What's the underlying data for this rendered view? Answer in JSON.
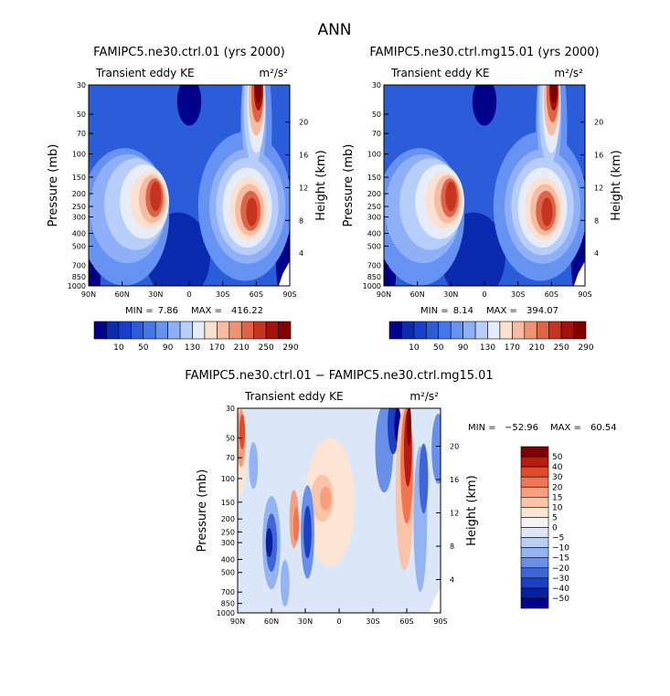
{
  "figure": {
    "title": "ANN"
  },
  "chart_data": [
    {
      "type": "heatmap",
      "id": "p1",
      "title": "FAMIPC5.ne30.ctrl.01 (yrs 2000)",
      "subtitle_left": "Transient eddy KE",
      "units_text": "m²/s²",
      "xlabel": "",
      "ylabel": "Pressure (mb)",
      "ylabel_right": "Height (km)",
      "x_ticks": [
        "90N",
        "60N",
        "30N",
        "0",
        "30S",
        "60S",
        "90S"
      ],
      "y_ticks": [
        "30",
        "50",
        "70",
        "100",
        "150",
        "200",
        "250",
        "300",
        "400",
        "500",
        "700",
        "850",
        "1000"
      ],
      "y_ticks_right": [
        "20",
        "16",
        "12",
        "8",
        "4"
      ],
      "xlim": [
        90,
        -90
      ],
      "ylim": [
        1000,
        30
      ],
      "stats": {
        "min_label": "MIN =",
        "min": "7.86",
        "max_label": "MAX =",
        "max": "416.22"
      },
      "colorbar_labels": [
        "10",
        "50",
        "90",
        "130",
        "170",
        "210",
        "250",
        "290"
      ],
      "features": [
        {
          "name": "northern jet eddy maximum",
          "lat": 30,
          "p": 220,
          "value": 380
        },
        {
          "name": "southern jet eddy maximum",
          "lat": -55,
          "p": 270,
          "value": 416
        },
        {
          "name": "southern stratospheric maximum",
          "lat": -60,
          "p": 35,
          "value": 300
        }
      ]
    },
    {
      "type": "heatmap",
      "id": "p2",
      "title": "FAMIPC5.ne30.ctrl.mg15.01 (yrs 2000)",
      "subtitle_left": "Transient eddy KE",
      "units_text": "m²/s²",
      "xlabel": "",
      "ylabel": "Pressure (mb)",
      "ylabel_right": "Height (km)",
      "x_ticks": [
        "90N",
        "60N",
        "30N",
        "0",
        "30S",
        "60S",
        "90S"
      ],
      "y_ticks": [
        "30",
        "50",
        "70",
        "100",
        "150",
        "200",
        "250",
        "300",
        "400",
        "500",
        "700",
        "850",
        "1000"
      ],
      "y_ticks_right": [
        "20",
        "16",
        "12",
        "8",
        "4"
      ],
      "xlim": [
        90,
        -90
      ],
      "ylim": [
        1000,
        30
      ],
      "stats": {
        "min_label": "MIN =",
        "min": "8.14",
        "max_label": "MAX =",
        "max": "394.07"
      },
      "colorbar_labels": [
        "10",
        "50",
        "90",
        "130",
        "170",
        "210",
        "250",
        "290"
      ],
      "features": [
        {
          "name": "northern jet eddy maximum",
          "lat": 30,
          "p": 200,
          "value": 390
        },
        {
          "name": "southern jet eddy maximum",
          "lat": -55,
          "p": 280,
          "value": 394
        },
        {
          "name": "southern stratospheric maximum",
          "lat": -62,
          "p": 35,
          "value": 290
        }
      ]
    },
    {
      "type": "heatmap",
      "id": "p3",
      "title": "FAMIPC5.ne30.ctrl.01 − FAMIPC5.ne30.ctrl.mg15.01",
      "subtitle_left": "Transient eddy KE",
      "units_text": "m²/s²",
      "xlabel": "",
      "ylabel": "Pressure (mb)",
      "ylabel_right": "Height (km)",
      "x_ticks": [
        "90N",
        "60N",
        "30N",
        "0",
        "30S",
        "60S",
        "90S"
      ],
      "y_ticks": [
        "30",
        "50",
        "70",
        "100",
        "150",
        "200",
        "250",
        "300",
        "400",
        "500",
        "700",
        "850",
        "1000"
      ],
      "y_ticks_right": [
        "20",
        "16",
        "12",
        "8",
        "4"
      ],
      "xlim": [
        90,
        -90
      ],
      "ylim": [
        1000,
        30
      ],
      "stats": {
        "min_label": "MIN =",
        "min": "−52.96",
        "max_label": "MAX =",
        "max": "60.54"
      },
      "colorbar_labels": [
        "50",
        "40",
        "30",
        "20",
        "15",
        "10",
        "5",
        "0",
        "−5",
        "−10",
        "−15",
        "−20",
        "−30",
        "−40",
        "−50"
      ],
      "features": [
        {
          "name": "positive difference core",
          "lat": -60,
          "p": 40,
          "value": 60
        },
        {
          "name": "negative difference core",
          "lat": 60,
          "p": 300,
          "value": -40
        }
      ]
    }
  ]
}
